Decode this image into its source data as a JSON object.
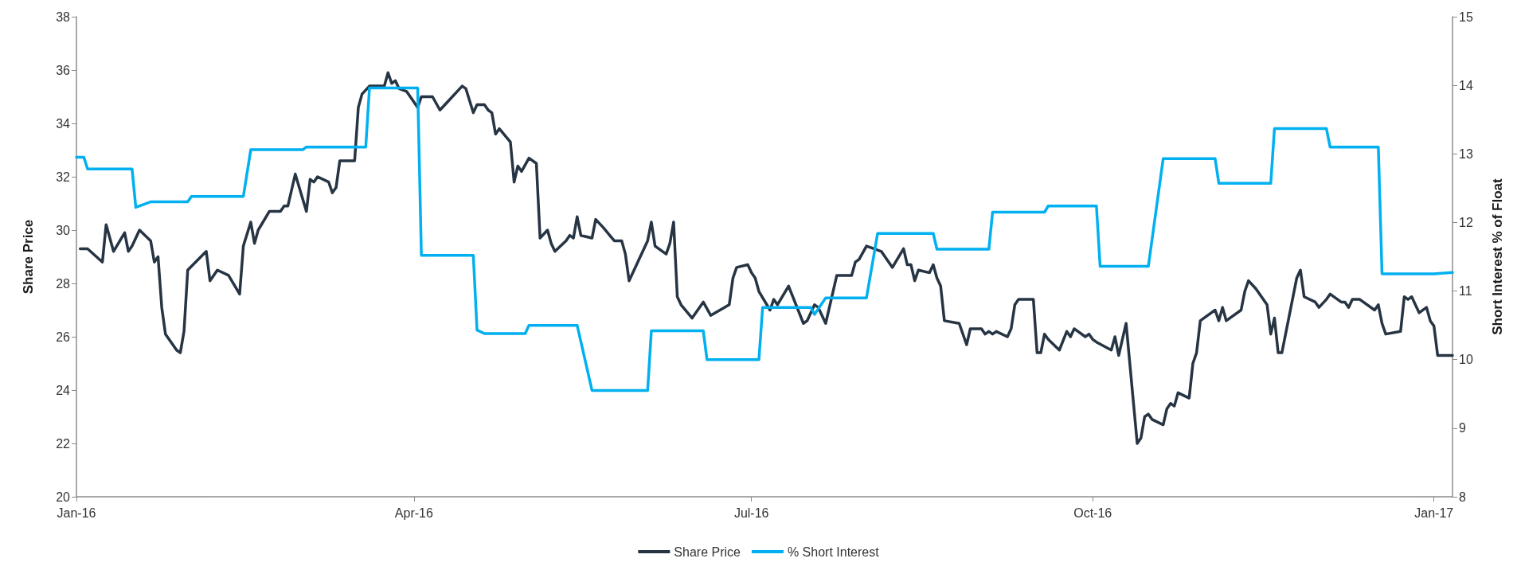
{
  "chart_data": {
    "type": "line",
    "ylabel": "Share Price",
    "y2label": "Short Interest % of Float",
    "xlim": [
      "2016-01-01",
      "2017-01-06"
    ],
    "xticks": [
      {
        "value": "2016-01-01",
        "label": "Jan-16"
      },
      {
        "value": "2016-04-01",
        "label": "Apr-16"
      },
      {
        "value": "2016-07-01",
        "label": "Jul-16"
      },
      {
        "value": "2016-10-01",
        "label": "Oct-16"
      },
      {
        "value": "2017-01-01",
        "label": "Jan-17"
      }
    ],
    "ylim": [
      20,
      38
    ],
    "yticks": [
      20,
      22,
      24,
      26,
      28,
      30,
      32,
      34,
      36,
      38
    ],
    "y2lim": [
      8,
      15
    ],
    "y2ticks": [
      8,
      9,
      10,
      11,
      12,
      13,
      14,
      15
    ],
    "grid": false,
    "legend": "bottom",
    "marker": "none",
    "line_style": "solid",
    "series": [
      {
        "name": "Share Price",
        "color": "#263443",
        "x": [
          "2016-01-02",
          "2016-01-04",
          "2016-01-08",
          "2016-01-09",
          "2016-01-11",
          "2016-01-14",
          "2016-01-15",
          "2016-01-16",
          "2016-01-18",
          "2016-01-21",
          "2016-01-22",
          "2016-01-23",
          "2016-01-24",
          "2016-01-25",
          "2016-01-28",
          "2016-01-29",
          "2016-01-30",
          "2016-01-31",
          "2016-02-05",
          "2016-02-06",
          "2016-02-08",
          "2016-02-11",
          "2016-02-14",
          "2016-02-15",
          "2016-02-17",
          "2016-02-18",
          "2016-02-19",
          "2016-02-22",
          "2016-02-25",
          "2016-02-26",
          "2016-02-27",
          "2016-02-29",
          "2016-03-03",
          "2016-03-04",
          "2016-03-05",
          "2016-03-06",
          "2016-03-09",
          "2016-03-10",
          "2016-03-11",
          "2016-03-12",
          "2016-03-16",
          "2016-03-17",
          "2016-03-18",
          "2016-03-20",
          "2016-03-24",
          "2016-03-25",
          "2016-03-26",
          "2016-03-27",
          "2016-03-28",
          "2016-03-30",
          "2016-03-31",
          "2016-04-02",
          "2016-04-03",
          "2016-04-06",
          "2016-04-08",
          "2016-04-10",
          "2016-04-14",
          "2016-04-15",
          "2016-04-17",
          "2016-04-18",
          "2016-04-20",
          "2016-04-21",
          "2016-04-22",
          "2016-04-23",
          "2016-04-24",
          "2016-04-27",
          "2016-04-28",
          "2016-04-29",
          "2016-04-30",
          "2016-05-02",
          "2016-05-04",
          "2016-05-05",
          "2016-05-07",
          "2016-05-08",
          "2016-05-09",
          "2016-05-12",
          "2016-05-13",
          "2016-05-14",
          "2016-05-15",
          "2016-05-16",
          "2016-05-19",
          "2016-05-20",
          "2016-05-22",
          "2016-05-25",
          "2016-05-27",
          "2016-05-28",
          "2016-05-29",
          "2016-06-03",
          "2016-06-04",
          "2016-06-05",
          "2016-06-08",
          "2016-06-09",
          "2016-06-10",
          "2016-06-11",
          "2016-06-12",
          "2016-06-15",
          "2016-06-18",
          "2016-06-20",
          "2016-06-25",
          "2016-06-26",
          "2016-06-27",
          "2016-06-30",
          "2016-07-01",
          "2016-07-02",
          "2016-07-03",
          "2016-07-06",
          "2016-07-07",
          "2016-07-08",
          "2016-07-11",
          "2016-07-15",
          "2016-07-16",
          "2016-07-18",
          "2016-07-19",
          "2016-07-21",
          "2016-07-23",
          "2016-07-24",
          "2016-07-28",
          "2016-07-29",
          "2016-07-30",
          "2016-08-01",
          "2016-08-03",
          "2016-08-05",
          "2016-08-08",
          "2016-08-11",
          "2016-08-12",
          "2016-08-13",
          "2016-08-14",
          "2016-08-15",
          "2016-08-18",
          "2016-08-19",
          "2016-08-20",
          "2016-08-21",
          "2016-08-22",
          "2016-08-26",
          "2016-08-28",
          "2016-08-29",
          "2016-09-01",
          "2016-09-02",
          "2016-09-03",
          "2016-09-04",
          "2016-09-05",
          "2016-09-08",
          "2016-09-09",
          "2016-09-10",
          "2016-09-11",
          "2016-09-15",
          "2016-09-16",
          "2016-09-17",
          "2016-09-18",
          "2016-09-19",
          "2016-09-22",
          "2016-09-24",
          "2016-09-25",
          "2016-09-26",
          "2016-09-29",
          "2016-09-30",
          "2016-10-01",
          "2016-10-02",
          "2016-10-06",
          "2016-10-07",
          "2016-10-08",
          "2016-10-10",
          "2016-10-13",
          "2016-10-14",
          "2016-10-15",
          "2016-10-16",
          "2016-10-17",
          "2016-10-20",
          "2016-10-21",
          "2016-10-22",
          "2016-10-23",
          "2016-10-24",
          "2016-10-27",
          "2016-10-28",
          "2016-10-29",
          "2016-10-30",
          "2016-11-03",
          "2016-11-04",
          "2016-11-05",
          "2016-11-06",
          "2016-11-10",
          "2016-11-11",
          "2016-11-12",
          "2016-11-14",
          "2016-11-17",
          "2016-11-18",
          "2016-11-19",
          "2016-11-20",
          "2016-11-21",
          "2016-11-25",
          "2016-11-26",
          "2016-11-27",
          "2016-11-30",
          "2016-12-01",
          "2016-12-03",
          "2016-12-04",
          "2016-12-07",
          "2016-12-08",
          "2016-12-09",
          "2016-12-10",
          "2016-12-12",
          "2016-12-16",
          "2016-12-17",
          "2016-12-18",
          "2016-12-19",
          "2016-12-23",
          "2016-12-24",
          "2016-12-25",
          "2016-12-26",
          "2016-12-28",
          "2016-12-30",
          "2016-12-31",
          "2017-01-01",
          "2017-01-02",
          "2017-01-06"
        ],
        "values": [
          29.3,
          29.3,
          28.8,
          30.2,
          29.2,
          29.9,
          29.2,
          29.4,
          30.0,
          29.6,
          28.8,
          29.0,
          27.1,
          26.1,
          25.5,
          25.4,
          26.2,
          28.5,
          29.2,
          28.1,
          28.5,
          28.3,
          27.6,
          29.4,
          30.3,
          29.5,
          30.0,
          30.7,
          30.7,
          30.9,
          30.9,
          32.1,
          30.7,
          31.9,
          31.8,
          32.0,
          31.8,
          31.4,
          31.6,
          32.6,
          32.6,
          34.6,
          35.1,
          35.4,
          35.4,
          35.9,
          35.5,
          35.6,
          35.3,
          35.2,
          35.0,
          34.6,
          35.0,
          35.0,
          34.5,
          34.8,
          35.4,
          35.3,
          34.4,
          34.7,
          34.7,
          34.5,
          34.4,
          33.6,
          33.8,
          33.3,
          31.8,
          32.4,
          32.2,
          32.7,
          32.5,
          29.7,
          30.0,
          29.5,
          29.2,
          29.6,
          29.8,
          29.7,
          30.5,
          29.8,
          29.7,
          30.4,
          30.1,
          29.6,
          29.6,
          29.1,
          28.1,
          29.6,
          30.3,
          29.4,
          29.1,
          29.5,
          30.3,
          27.5,
          27.2,
          26.7,
          27.3,
          26.8,
          27.2,
          28.2,
          28.6,
          28.7,
          28.4,
          28.2,
          27.7,
          27.0,
          27.4,
          27.2,
          27.9,
          26.5,
          26.6,
          27.2,
          27.1,
          26.5,
          27.7,
          28.3,
          28.3,
          28.8,
          28.9,
          29.4,
          29.3,
          29.2,
          28.6,
          29.3,
          28.7,
          28.7,
          28.1,
          28.5,
          28.4,
          28.7,
          28.2,
          27.9,
          26.6,
          26.5,
          25.7,
          26.3,
          26.3,
          26.1,
          26.2,
          26.1,
          26.2,
          26.0,
          26.3,
          27.2,
          27.4,
          27.4,
          25.4,
          25.4,
          26.1,
          25.9,
          25.5,
          26.2,
          26.0,
          26.3,
          26.0,
          26.1,
          25.9,
          25.8,
          25.5,
          26.0,
          25.3,
          26.5,
          22.0,
          22.2,
          23.0,
          23.1,
          22.9,
          22.7,
          23.3,
          23.5,
          23.4,
          23.9,
          23.7,
          25.0,
          25.4,
          26.6,
          27.0,
          26.6,
          27.1,
          26.6,
          27.0,
          27.7,
          28.1,
          27.8,
          27.2,
          26.1,
          26.7,
          25.4,
          25.4,
          28.2,
          28.5,
          27.5,
          27.3,
          27.1,
          27.4,
          27.6,
          27.3,
          27.3,
          27.1,
          27.4,
          27.4,
          27.0,
          27.2,
          26.5,
          26.1,
          26.2,
          27.5,
          27.4,
          27.5,
          26.9,
          27.1,
          26.6,
          26.4,
          25.3,
          25.3
        ]
      },
      {
        "name": "% Short Interest",
        "color": "#00b0f0",
        "axis": "y2",
        "x": [
          "2016-01-01",
          "2016-01-03",
          "2016-01-04",
          "2016-01-16",
          "2016-01-17",
          "2016-01-21",
          "2016-01-31",
          "2016-02-01",
          "2016-02-15",
          "2016-02-17",
          "2016-03-02",
          "2016-03-03",
          "2016-03-19",
          "2016-03-20",
          "2016-04-02",
          "2016-04-03",
          "2016-04-17",
          "2016-04-18",
          "2016-04-20",
          "2016-05-01",
          "2016-05-02",
          "2016-05-15",
          "2016-05-19",
          "2016-06-03",
          "2016-06-04",
          "2016-06-18",
          "2016-06-19",
          "2016-07-03",
          "2016-07-04",
          "2016-07-17",
          "2016-07-18",
          "2016-07-21",
          "2016-08-01",
          "2016-08-04",
          "2016-08-19",
          "2016-08-20",
          "2016-09-03",
          "2016-09-04",
          "2016-09-18",
          "2016-09-19",
          "2016-10-02",
          "2016-10-03",
          "2016-10-16",
          "2016-10-20",
          "2016-11-03",
          "2016-11-04",
          "2016-11-18",
          "2016-11-19",
          "2016-12-03",
          "2016-12-04",
          "2016-12-17",
          "2016-12-18",
          "2017-01-01",
          "2017-01-06"
        ],
        "values": [
          12.95,
          12.95,
          12.78,
          12.78,
          12.22,
          12.3,
          12.3,
          12.38,
          12.38,
          13.06,
          13.06,
          13.1,
          13.1,
          13.96,
          13.96,
          11.52,
          11.52,
          10.43,
          10.38,
          10.38,
          10.5,
          10.5,
          9.55,
          9.55,
          10.42,
          10.42,
          10.0,
          10.0,
          10.76,
          10.76,
          10.66,
          10.9,
          10.9,
          11.84,
          11.84,
          11.61,
          11.61,
          12.15,
          12.15,
          12.24,
          12.24,
          11.36,
          11.36,
          12.93,
          12.93,
          12.57,
          12.57,
          13.37,
          13.37,
          13.1,
          13.1,
          11.25,
          11.25,
          11.27
        ]
      }
    ]
  }
}
